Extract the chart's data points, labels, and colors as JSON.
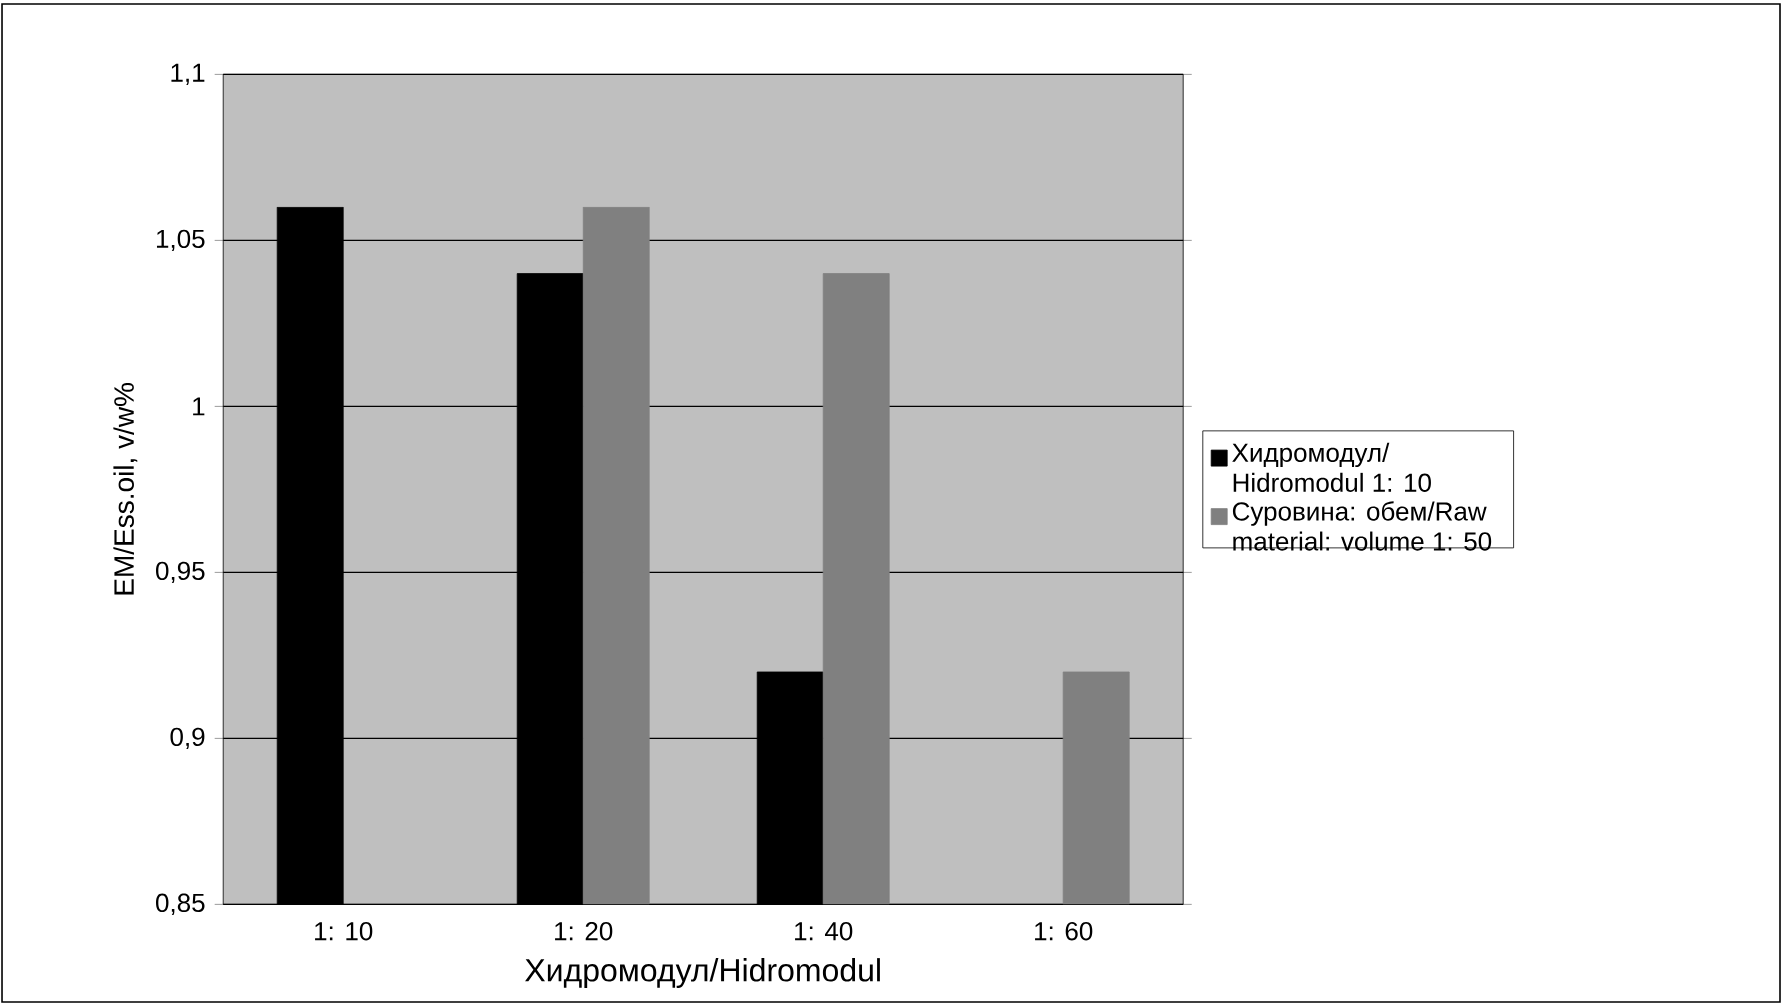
{
  "chart_data": {
    "type": "bar",
    "xlabel": "Хидромодул/Hidromodul",
    "ylabel": "EM/Ess.oil,  v/w%",
    "categories": [
      "1: 10",
      "1: 20",
      "1: 40",
      "1: 60"
    ],
    "series": [
      {
        "name": "Хидромодул/ Hidromodul 1: 10",
        "color": "#000000",
        "values": [
          1.06,
          1.04,
          0.92,
          null
        ]
      },
      {
        "name": "Суровина: обем/Raw material: volume 1: 50",
        "color": "#808080",
        "values": [
          null,
          1.06,
          1.04,
          0.92
        ]
      }
    ],
    "ylim": [
      0.85,
      1.1
    ],
    "yticks": [
      {
        "value": 0.85,
        "label": "0,85"
      },
      {
        "value": 0.9,
        "label": "0,9"
      },
      {
        "value": 0.95,
        "label": "0,95"
      },
      {
        "value": 1,
        "label": "1"
      },
      {
        "value": 1.05,
        "label": "1,05"
      },
      {
        "value": 1.1,
        "label": "1,1"
      }
    ],
    "grid": "y",
    "legend": "right"
  }
}
